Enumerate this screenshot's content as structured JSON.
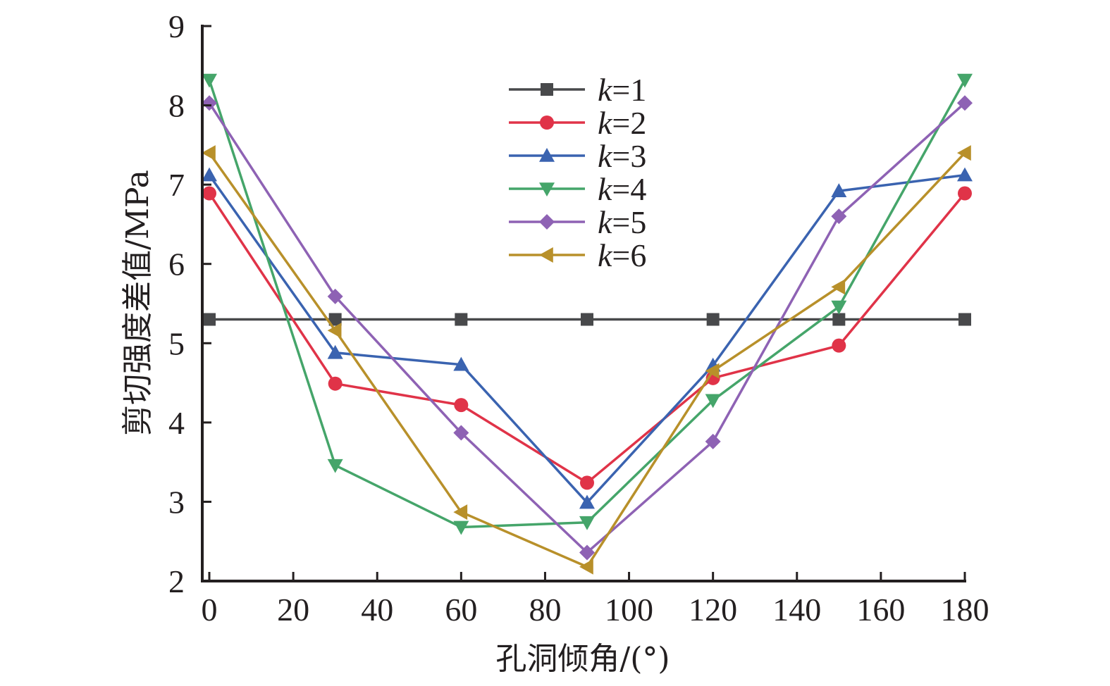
{
  "chart_data": {
    "type": "line",
    "title": "",
    "xlabel": "孔洞倾角/(°)",
    "ylabel": "剪切强度差值/MPa",
    "xlim": [
      0,
      180
    ],
    "ylim": [
      2,
      9
    ],
    "xticks": [
      0,
      20,
      40,
      60,
      80,
      100,
      120,
      140,
      160,
      180
    ],
    "yticks": [
      2,
      3,
      4,
      5,
      6,
      7,
      8,
      9
    ],
    "grid": false,
    "legend_position": "top-center",
    "x": [
      0,
      30,
      60,
      90,
      120,
      150,
      180
    ],
    "series": [
      {
        "name": "k=1",
        "var": "k",
        "eq": "=1",
        "color": "#48494b",
        "marker": "square",
        "values": [
          5.3,
          5.3,
          5.3,
          5.3,
          5.3,
          5.3,
          5.3
        ]
      },
      {
        "name": "k=2",
        "var": "k",
        "eq": "=2",
        "color": "#e03348",
        "marker": "circle",
        "values": [
          6.89,
          4.49,
          4.22,
          3.24,
          4.56,
          4.97,
          6.89
        ]
      },
      {
        "name": "k=3",
        "var": "k",
        "eq": "=3",
        "color": "#3a63b0",
        "marker": "triangle-up",
        "values": [
          7.12,
          4.88,
          4.73,
          2.99,
          4.72,
          6.92,
          7.12
        ]
      },
      {
        "name": "k=4",
        "var": "k",
        "eq": "=4",
        "color": "#45a56a",
        "marker": "triangle-down",
        "values": [
          8.32,
          3.46,
          2.68,
          2.74,
          4.28,
          5.46,
          8.32
        ]
      },
      {
        "name": "k=5",
        "var": "k",
        "eq": "=5",
        "color": "#8e62b4",
        "marker": "diamond",
        "values": [
          8.03,
          5.59,
          3.87,
          2.36,
          3.76,
          6.6,
          8.03
        ]
      },
      {
        "name": "k=6",
        "var": "k",
        "eq": "=6",
        "color": "#b8902a",
        "marker": "triangle-left",
        "values": [
          7.4,
          5.16,
          2.87,
          2.18,
          4.65,
          5.71,
          7.4
        ]
      }
    ]
  }
}
